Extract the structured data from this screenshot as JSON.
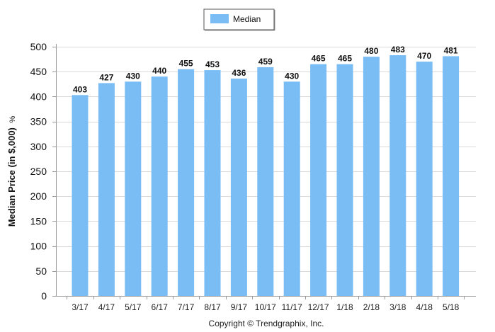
{
  "chart_data": {
    "type": "bar",
    "categories": [
      "3/17",
      "4/17",
      "5/17",
      "6/17",
      "7/17",
      "8/17",
      "9/17",
      "10/17",
      "11/17",
      "12/17",
      "1/18",
      "2/18",
      "3/18",
      "4/18",
      "5/18"
    ],
    "series": [
      {
        "name": "Median",
        "values": [
          403,
          427,
          430,
          440,
          455,
          453,
          436,
          459,
          430,
          465,
          465,
          480,
          483,
          470,
          481
        ]
      }
    ],
    "ylabel": "Median Price (in $,000)",
    "ylabel_suffix": "%",
    "ylim": [
      0,
      500
    ],
    "yticks": [
      0,
      50,
      100,
      150,
      200,
      250,
      300,
      350,
      400,
      450,
      500
    ],
    "grid": true,
    "legend": "top-center",
    "data_labels": true,
    "colors": {
      "bar": "#7abcf4",
      "grid": "#d9d9d9",
      "axis": "#9a9a9a"
    }
  },
  "footer": "Copyright © Trendgraphix, Inc."
}
